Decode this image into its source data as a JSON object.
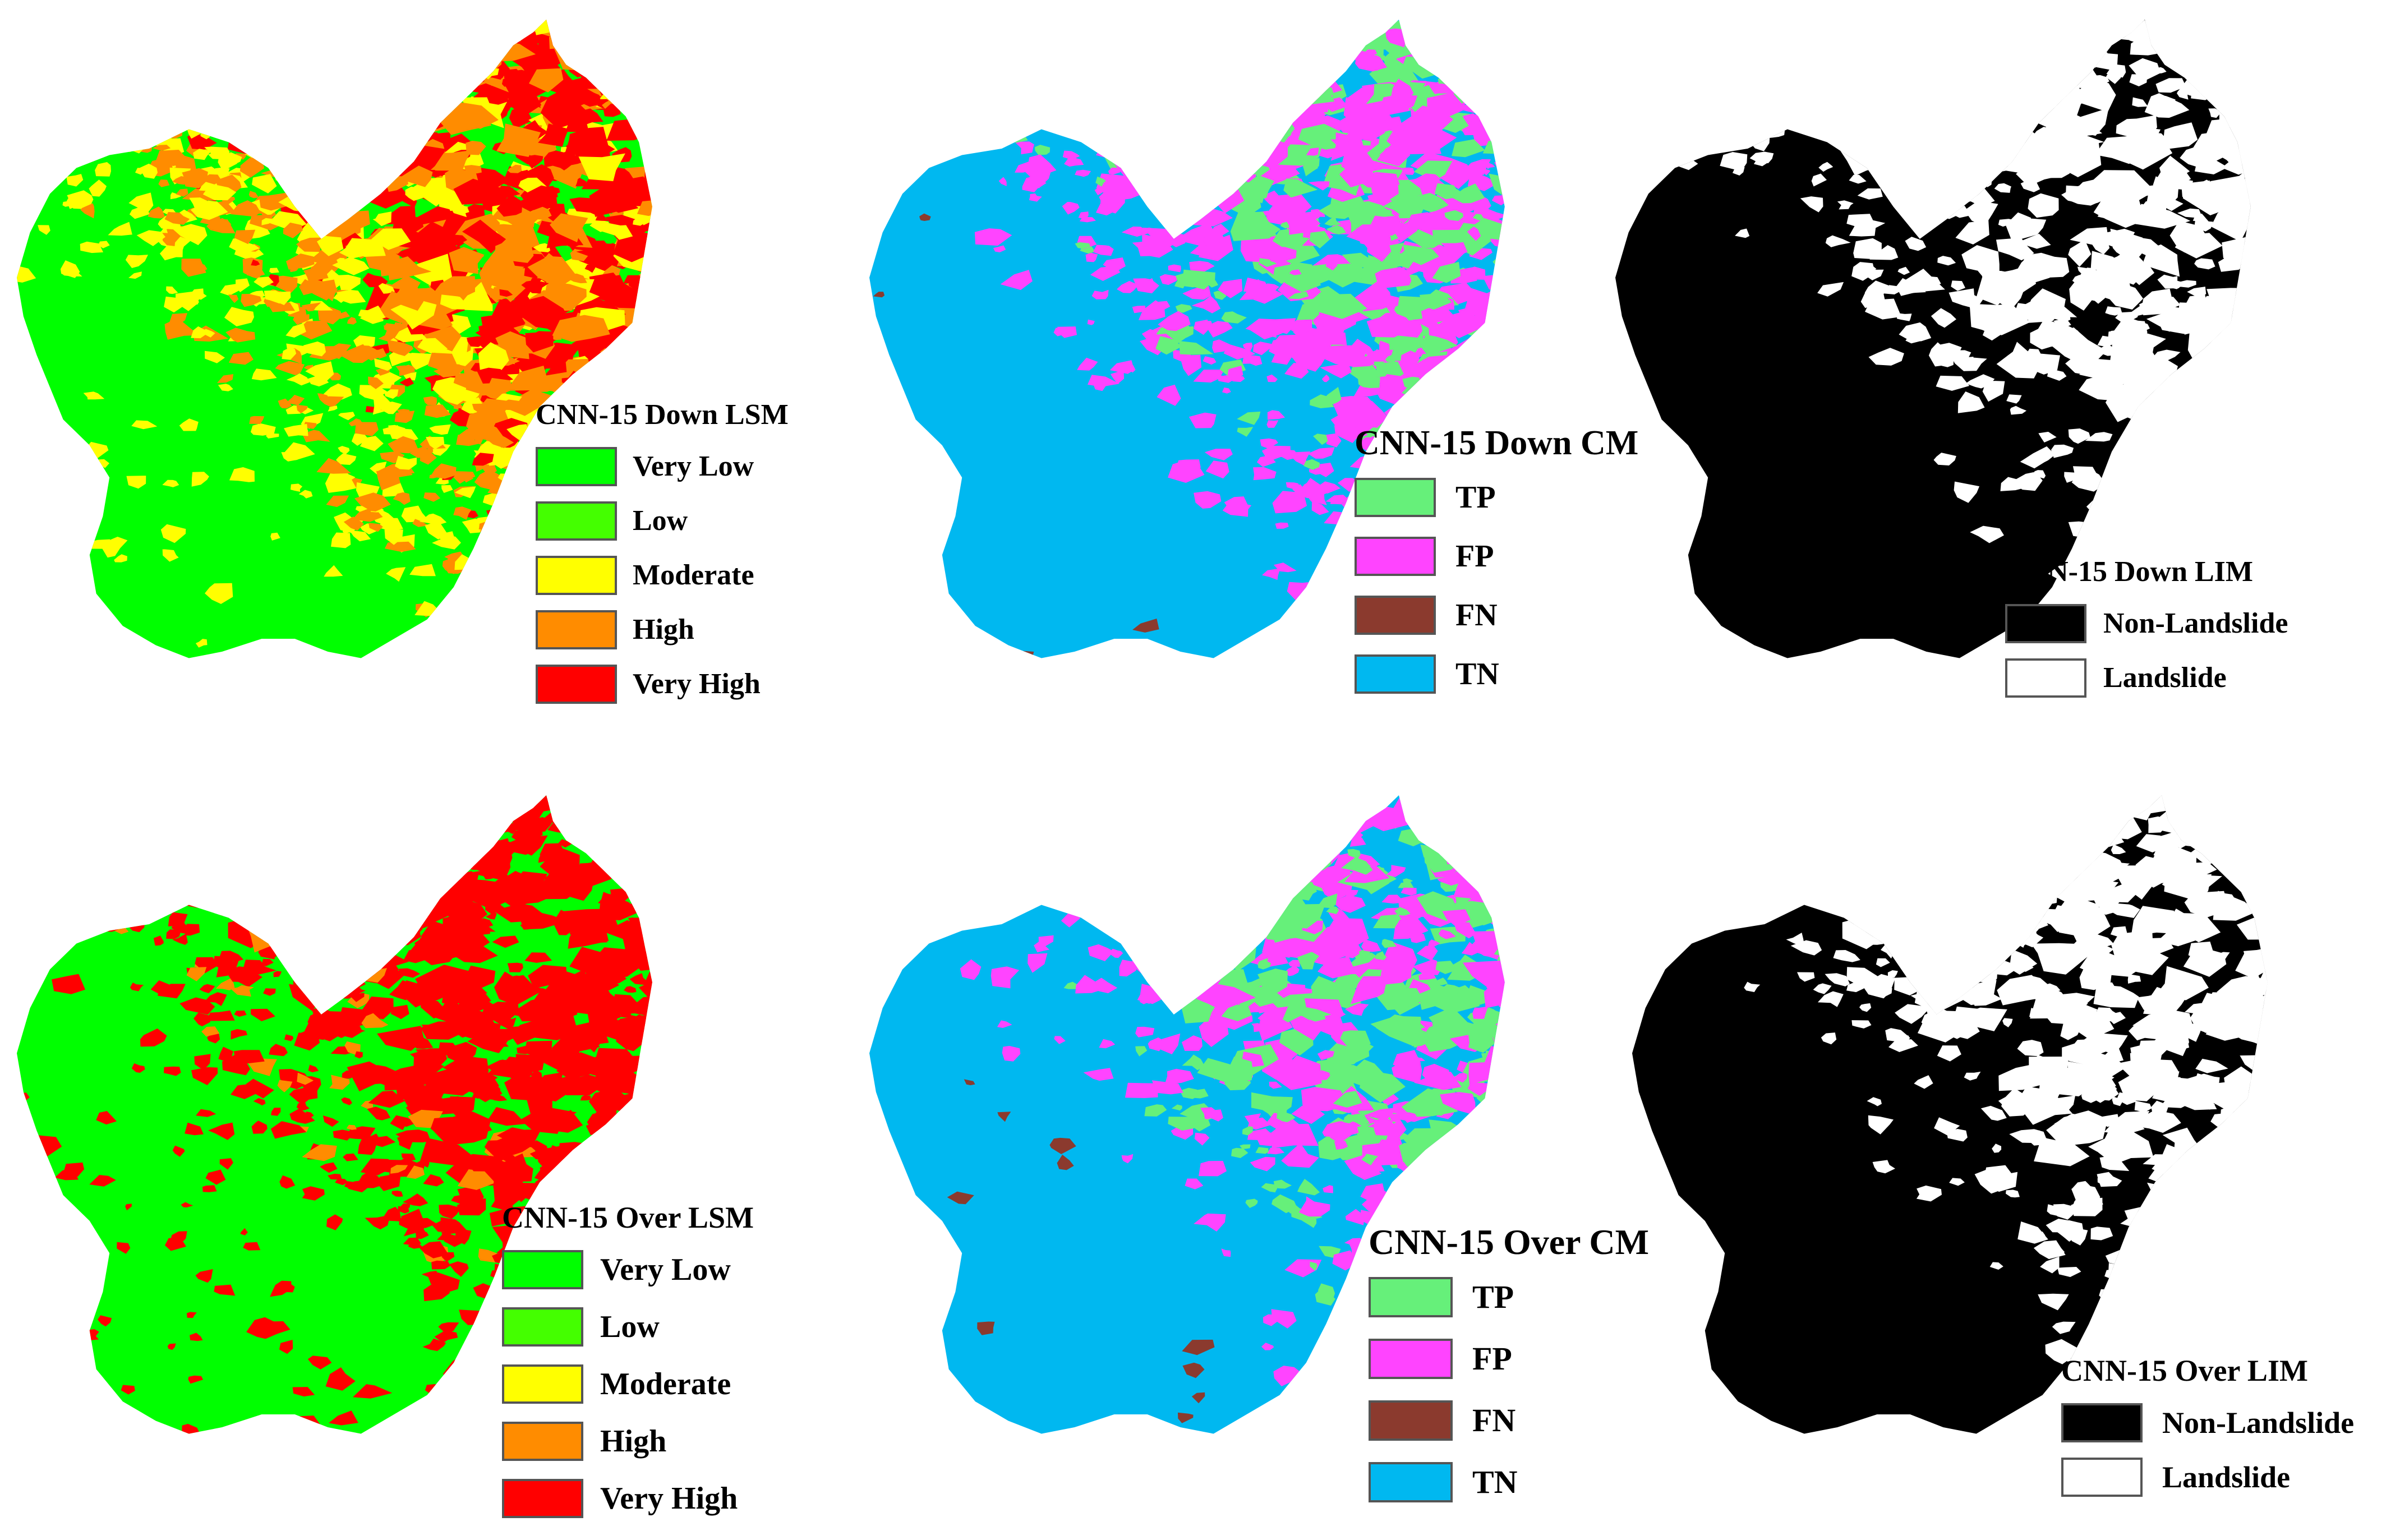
{
  "panels": [
    {
      "kind": "lsm",
      "legend": {
        "title": "CNN-15 Down LSM",
        "items": [
          {
            "label": "Very Low",
            "color": "#00ff00"
          },
          {
            "label": "Low",
            "color": "#44ff00"
          },
          {
            "label": "Moderate",
            "color": "#ffff00"
          },
          {
            "label": "High",
            "color": "#ff8c00"
          },
          {
            "label": "Very High",
            "color": "#ff0000"
          }
        ]
      }
    },
    {
      "kind": "cm",
      "legend": {
        "title": "CNN-15 Down CM",
        "items": [
          {
            "label": "TP",
            "color": "#66f07a"
          },
          {
            "label": "FP",
            "color": "#ff44ff"
          },
          {
            "label": "FN",
            "color": "#8b3a2e"
          },
          {
            "label": "TN",
            "color": "#00b8f0"
          }
        ]
      }
    },
    {
      "kind": "lim",
      "legend": {
        "title": "CNN-15 Down LIM",
        "items": [
          {
            "label": "Non-Landslide",
            "color": "#000000"
          },
          {
            "label": "Landslide",
            "color": "#ffffff"
          }
        ]
      }
    },
    {
      "kind": "lsm",
      "legend": {
        "title": "CNN-15 Over LSM",
        "items": [
          {
            "label": "Very Low",
            "color": "#00ff00"
          },
          {
            "label": "Low",
            "color": "#44ff00"
          },
          {
            "label": "Moderate",
            "color": "#ffff00"
          },
          {
            "label": "High",
            "color": "#ff8c00"
          },
          {
            "label": "Very High",
            "color": "#ff0000"
          }
        ]
      }
    },
    {
      "kind": "cm",
      "legend": {
        "title": "CNN-15 Over CM",
        "items": [
          {
            "label": "TP",
            "color": "#66f07a"
          },
          {
            "label": "FP",
            "color": "#ff44ff"
          },
          {
            "label": "FN",
            "color": "#8b3a2e"
          },
          {
            "label": "TN",
            "color": "#00b8f0"
          }
        ]
      }
    },
    {
      "kind": "lim",
      "legend": {
        "title": "CNN-15 Over LIM",
        "items": [
          {
            "label": "Non-Landslide",
            "color": "#000000"
          },
          {
            "label": "Landslide",
            "color": "#ffffff"
          }
        ]
      }
    }
  ]
}
